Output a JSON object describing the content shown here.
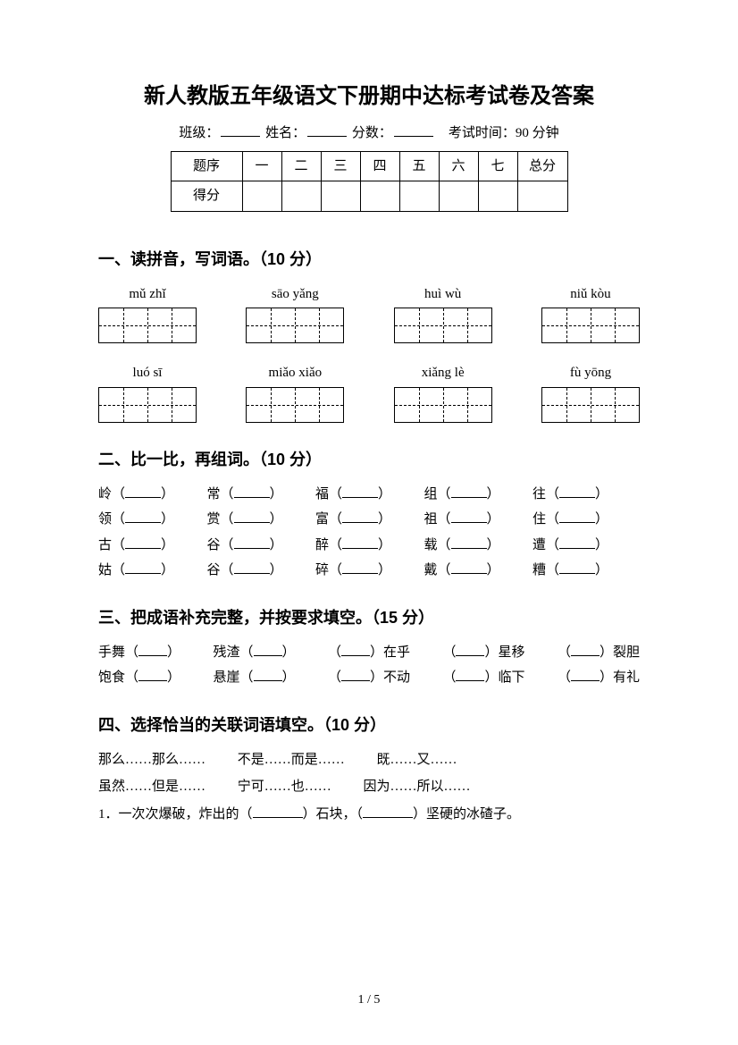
{
  "title": "新人教版五年级语文下册期中达标考试卷及答案",
  "info": {
    "class_label": "班级：",
    "name_label": "姓名：",
    "score_label": "分数：",
    "time_label": "考试时间：90 分钟"
  },
  "score_table": {
    "row1": [
      "题序",
      "一",
      "二",
      "三",
      "四",
      "五",
      "六",
      "七",
      "总分"
    ],
    "row2_label": "得分"
  },
  "s1": {
    "heading": "一、读拼音，写词语。（10 分）",
    "pinyin_row1": [
      "mǔ zhǐ",
      "sāo yǎng",
      "huì wù",
      "niǔ kòu"
    ],
    "pinyin_row2": [
      "luó  sī",
      "miǎo xiǎo",
      "xiǎng lè",
      "fù yōng"
    ]
  },
  "s2": {
    "heading": "二、比一比，再组词。（10 分）",
    "rows": [
      [
        "岭",
        "常",
        "福",
        "组",
        "往"
      ],
      [
        "领",
        "赏",
        "富",
        "祖",
        "住"
      ],
      [
        "古",
        "谷",
        "醉",
        "载",
        "遭"
      ],
      [
        "姑",
        "谷",
        "碎",
        "戴",
        "糟"
      ]
    ]
  },
  "s3": {
    "heading": "三、把成语补充完整，并按要求填空。（15 分）",
    "line1": [
      {
        "pre": "手舞（",
        "post": "）"
      },
      {
        "pre": "残渣（",
        "post": "）"
      },
      {
        "pre": "（",
        "post": "）在乎"
      },
      {
        "pre": "（",
        "post": "）星移"
      },
      {
        "pre": "（",
        "post": "）裂胆"
      }
    ],
    "line2": [
      {
        "pre": "饱食（",
        "post": "）"
      },
      {
        "pre": "悬崖（",
        "post": "）"
      },
      {
        "pre": "（",
        "post": "）不动"
      },
      {
        "pre": "（",
        "post": "）临下"
      },
      {
        "pre": "（",
        "post": "）有礼"
      }
    ]
  },
  "s4": {
    "heading": "四、选择恰当的关联词语填空。（10 分）",
    "words_row1": [
      "那么……那么……",
      "不是……而是……",
      "既……又……"
    ],
    "words_row2": [
      "虽然……但是……",
      "宁可……也……",
      "因为……所以……"
    ],
    "q1_pre": "1．一次次爆破，炸出的（",
    "q1_mid": "）石块，（",
    "q1_post": "）坚硬的冰碴子。"
  },
  "page_footer": "1 / 5",
  "style": {
    "background_color": "#ffffff",
    "title_fontsize": 24,
    "body_fontsize": 16,
    "section_fontsize": 18
  }
}
